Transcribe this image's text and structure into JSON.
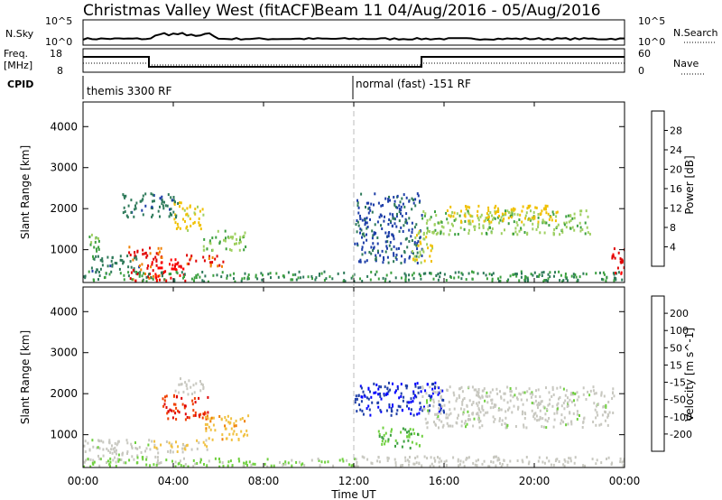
{
  "header": {
    "station": "Christmas Valley West (fitACF)",
    "beam_date": "Beam 11 04/Aug/2016 - 05/Aug/2016"
  },
  "panels": {
    "nsky": {
      "label": "N.Sky",
      "left_ticks": [
        "10^5",
        "10^0"
      ],
      "right_ticks": [
        "10^5",
        "10^0"
      ],
      "right_label": "N.Search"
    },
    "freq": {
      "label_line1": "Freq.",
      "label_line2": "[MHz]",
      "left_ticks": [
        "18",
        "8"
      ],
      "right_ticks": [
        "60",
        "0"
      ],
      "right_label": "Nave"
    },
    "cpid": {
      "label": "CPID",
      "segments": [
        "themis 3300 RF",
        "normal (fast) -151 RF"
      ]
    }
  },
  "x_axis": {
    "label": "Time UT",
    "ticks": [
      "00:00",
      "04:00",
      "08:00",
      "12:00",
      "16:00",
      "20:00",
      "00:00"
    ]
  },
  "colors": {
    "power_scale": [
      "#0000ff",
      "#1f3fa8",
      "#2e7a5a",
      "#3ca040",
      "#9fd060",
      "#f0c000",
      "#f08000",
      "#e00000",
      "#ff0000"
    ],
    "velocity_scale": [
      "#e00000",
      "#f04000",
      "#f08000",
      "#f0c040",
      "#c8c8c0",
      "#c8c8c0",
      "#70d040",
      "#3ca040",
      "#2e7a5a",
      "#1f3fa8",
      "#0000ff"
    ]
  },
  "chart_data": [
    {
      "type": "heatmap",
      "name": "power",
      "xlabel": "Time UT",
      "ylabel": "Slant Range [km]",
      "yticks": [
        "1000",
        "2000",
        "3000",
        "4000"
      ],
      "ylim": [
        200,
        4600
      ],
      "colorbar": {
        "label": "Power [dB]",
        "ticks": [
          "4",
          "8",
          "12",
          "16",
          "20",
          "24",
          "28"
        ],
        "range": [
          0,
          30
        ]
      },
      "blobs": [
        {
          "t0": 0.2,
          "t1": 0.7,
          "r0": 700,
          "r1": 1400,
          "value": 12
        },
        {
          "t0": 0.3,
          "t1": 2.5,
          "r0": 450,
          "r1": 900,
          "value": 8
        },
        {
          "t0": 2.0,
          "t1": 3.5,
          "r0": 250,
          "r1": 1100,
          "value": 24
        },
        {
          "t0": 3.0,
          "t1": 4.5,
          "r0": 250,
          "r1": 800,
          "value": 28
        },
        {
          "t0": 4.5,
          "t1": 6.2,
          "r0": 600,
          "r1": 900,
          "value": 24
        },
        {
          "t0": 4.0,
          "t1": 5.3,
          "r0": 1500,
          "r1": 2200,
          "value": 18
        },
        {
          "t0": 5.3,
          "t1": 7.2,
          "r0": 1000,
          "r1": 1500,
          "value": 14
        },
        {
          "t0": 1.7,
          "t1": 4.2,
          "r0": 1800,
          "r1": 2400,
          "value": 8
        },
        {
          "t0": 0.0,
          "t1": 24.0,
          "r0": 250,
          "r1": 500,
          "value": 10
        },
        {
          "t0": 12.0,
          "t1": 15.0,
          "r0": 700,
          "r1": 2400,
          "value": 6
        },
        {
          "t0": 15.0,
          "t1": 22.5,
          "r0": 1400,
          "r1": 2000,
          "value": 14
        },
        {
          "t0": 16.0,
          "t1": 21.0,
          "r0": 1700,
          "r1": 2100,
          "value": 18
        },
        {
          "t0": 14.5,
          "t1": 15.5,
          "r0": 700,
          "r1": 1500,
          "value": 16
        },
        {
          "t0": 23.4,
          "t1": 24.0,
          "r0": 400,
          "r1": 1100,
          "value": 26
        }
      ]
    },
    {
      "type": "heatmap",
      "name": "velocity",
      "xlabel": "Time UT",
      "ylabel": "Slant Range [km]",
      "yticks": [
        "1000",
        "2000",
        "3000",
        "4000"
      ],
      "ylim": [
        200,
        4600
      ],
      "colorbar": {
        "label": "Velocity [m s^-1]",
        "ticks": [
          "200",
          "100",
          "50",
          "15",
          "-15",
          "-50",
          "-100",
          "-200"
        ],
        "range": [
          -250,
          250
        ]
      },
      "blobs": [
        {
          "t0": 0.0,
          "t1": 3.5,
          "r0": 350,
          "r1": 900,
          "value": 0
        },
        {
          "t0": 3.5,
          "t1": 5.5,
          "r0": 1400,
          "r1": 2000,
          "value": -200
        },
        {
          "t0": 5.3,
          "t1": 7.3,
          "r0": 900,
          "r1": 1500,
          "value": -100
        },
        {
          "t0": 3.0,
          "t1": 5.5,
          "r0": 600,
          "r1": 900,
          "value": -70
        },
        {
          "t0": 4.0,
          "t1": 5.3,
          "r0": 2000,
          "r1": 2400,
          "value": -15
        },
        {
          "t0": 0.0,
          "t1": 12.0,
          "r0": 250,
          "r1": 450,
          "value": 30
        },
        {
          "t0": 12.0,
          "t1": 24.0,
          "r0": 250,
          "r1": 500,
          "value": -40
        },
        {
          "t0": 12.0,
          "t1": 16.0,
          "r0": 1500,
          "r1": 2300,
          "value": 200
        },
        {
          "t0": 13.0,
          "t1": 15.0,
          "r0": 700,
          "r1": 1200,
          "value": 60
        },
        {
          "t0": 15.0,
          "t1": 23.5,
          "r0": 1200,
          "r1": 2200,
          "value": 0
        }
      ]
    }
  ]
}
